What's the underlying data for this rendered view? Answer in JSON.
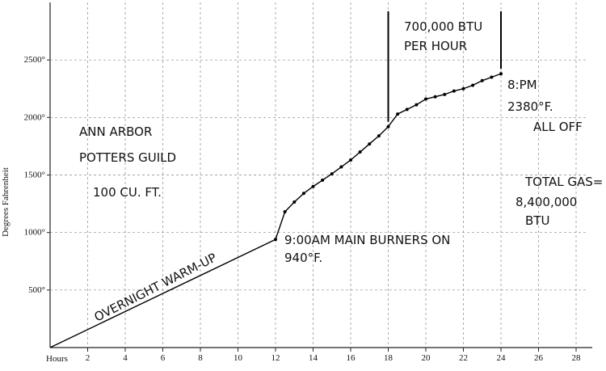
{
  "chart_data": {
    "type": "line",
    "y_label": "Degrees Fahrenheit",
    "x_label": "Hours",
    "xlim": [
      0,
      28
    ],
    "ylim": [
      0,
      3000
    ],
    "xticks": [
      2,
      4,
      6,
      8,
      10,
      12,
      14,
      16,
      18,
      20,
      22,
      24,
      26,
      28
    ],
    "yticks": [
      {
        "value": 500,
        "label": "500°"
      },
      {
        "value": 1000,
        "label": "1000°"
      },
      {
        "value": 1500,
        "label": "1500°"
      },
      {
        "value": 2000,
        "label": "2000°"
      },
      {
        "value": 2500,
        "label": "2500°"
      }
    ],
    "grid": true,
    "series": [
      {
        "color": "#000000",
        "x": [
          0,
          12,
          12.5,
          13,
          13.5,
          14,
          14.5,
          15,
          15.5,
          16,
          16.5,
          17,
          17.5,
          18,
          18.5,
          19,
          19.5,
          20,
          20.5,
          21,
          21.5,
          22,
          22.5,
          23,
          23.5,
          24
        ],
        "values": [
          0,
          940,
          1180,
          1265,
          1340,
          1400,
          1455,
          1510,
          1570,
          1630,
          1700,
          1770,
          1840,
          1920,
          2030,
          2070,
          2110,
          2160,
          2180,
          2200,
          2230,
          2250,
          2280,
          2320,
          2350,
          2380
        ]
      }
    ],
    "vlines": [
      18,
      24
    ],
    "annotations": [
      "ANN ARBOR",
      "POTTERS GUILD",
      "100 CU. FT.",
      "OVERNIGHT WARM-UP",
      "9:00AM MAIN BURNERS ON",
      "940°F.",
      "700,000 BTU",
      "PER HOUR",
      "8:PM",
      "2380°F.",
      "ALL OFF",
      "TOTAL GAS=",
      "8,400,000",
      "BTU"
    ]
  }
}
